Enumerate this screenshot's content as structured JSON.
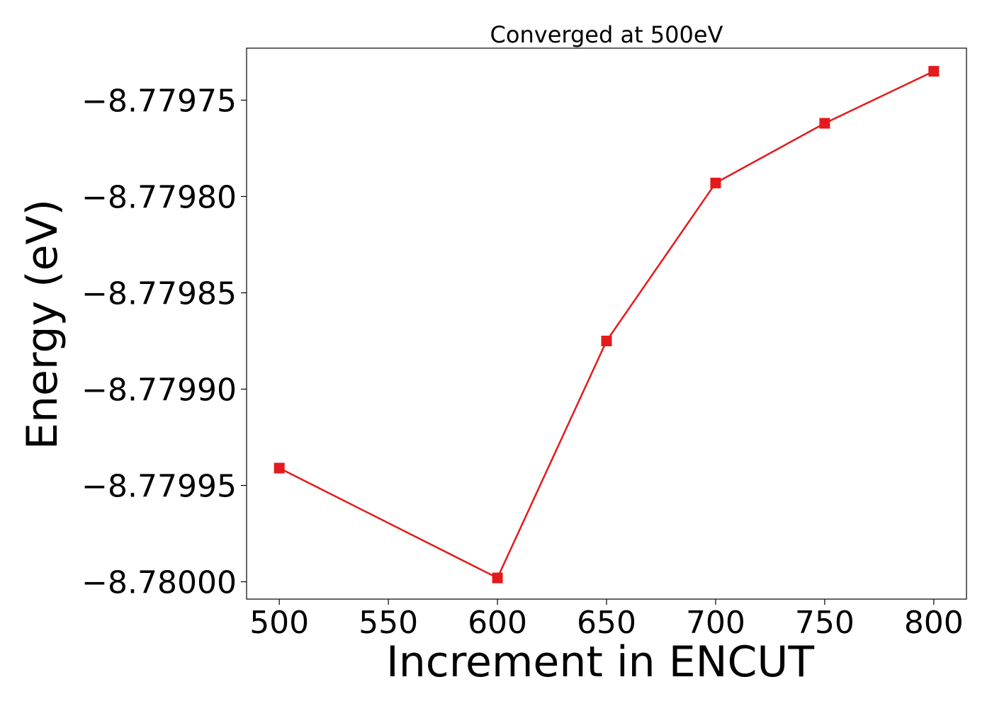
{
  "chart_data": {
    "type": "line",
    "title": "Converged at 500eV",
    "xlabel": "Increment in ENCUT",
    "ylabel": "Energy (eV)",
    "x": [
      500,
      600,
      650,
      700,
      750,
      800
    ],
    "series": [
      {
        "values": [
          -8.779941,
          -8.779998,
          -8.779875,
          -8.779793,
          -8.779762,
          -8.779735
        ],
        "color": "#e41a1c",
        "marker": "square"
      }
    ],
    "xticks": [
      500,
      550,
      600,
      650,
      700,
      750,
      800
    ],
    "xtick_labels": [
      "500",
      "550",
      "600",
      "650",
      "700",
      "750",
      "800"
    ],
    "yticks": [
      -8.77975,
      -8.7798,
      -8.77985,
      -8.7799,
      -8.77995,
      -8.78
    ],
    "ytick_labels": [
      "−8.77975",
      "−8.77980",
      "−8.77985",
      "−8.77990",
      "−8.77995",
      "−8.78000"
    ],
    "xlim": [
      485,
      815
    ],
    "ylim": [
      -8.780009,
      -8.779723
    ],
    "grid": false,
    "legend": "none"
  }
}
